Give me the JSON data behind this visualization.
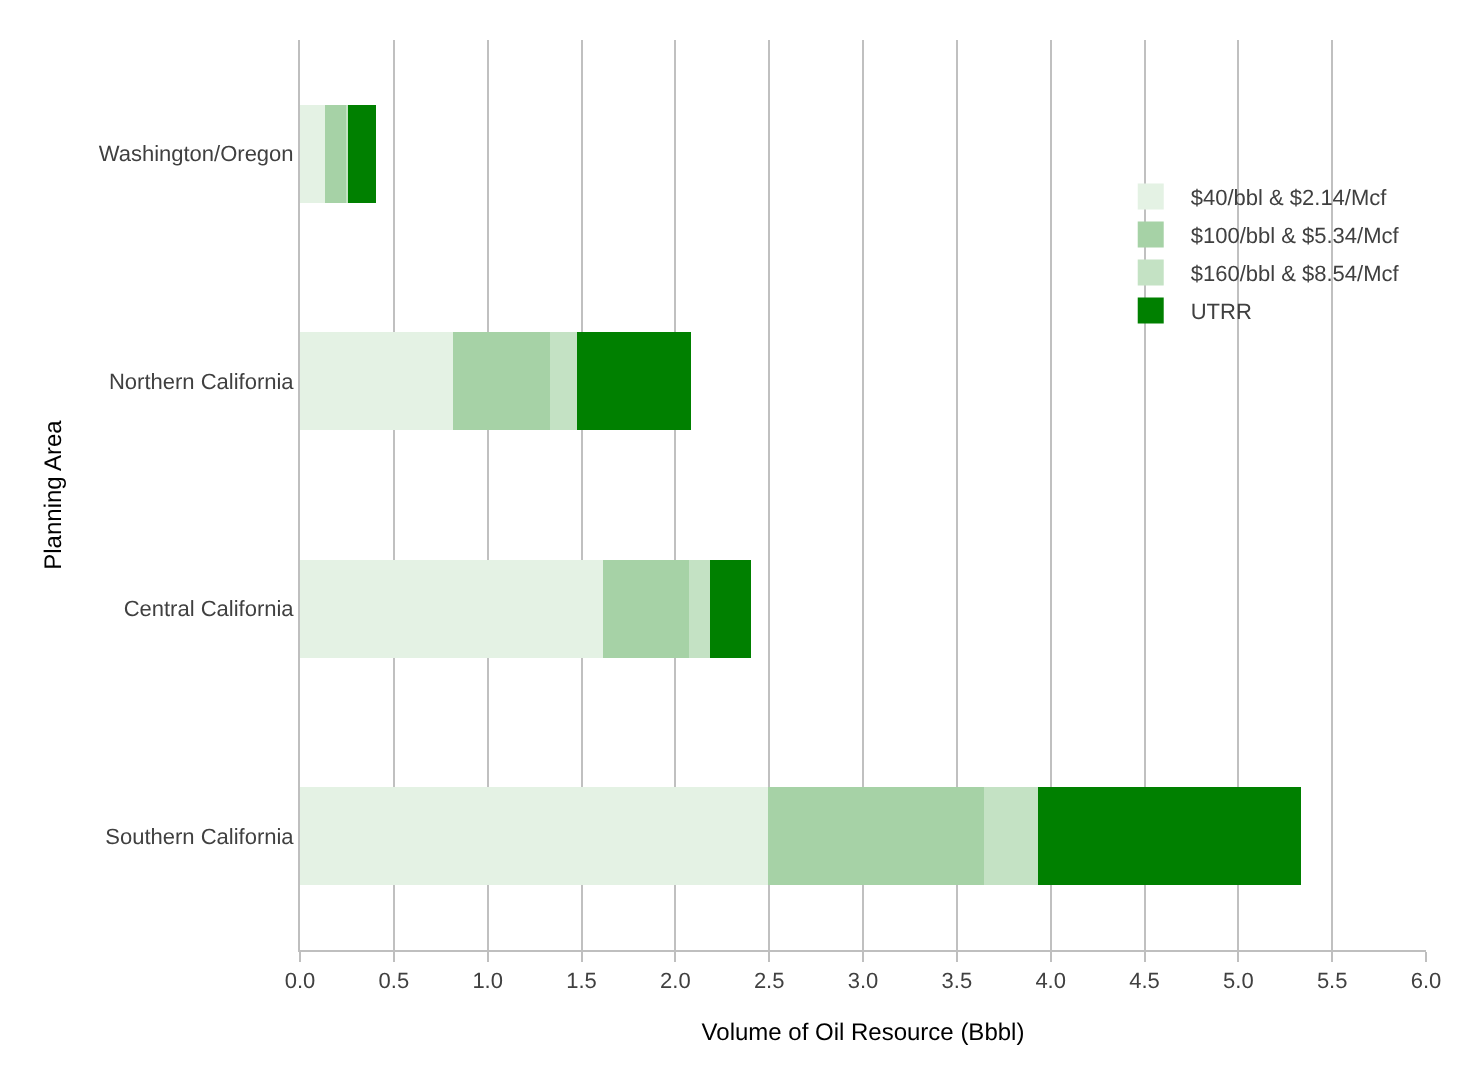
{
  "chart_data": {
    "type": "bar",
    "orientation": "horizontal",
    "stacked": true,
    "xlabel": "Volume of Oil Resource (Bbbl)",
    "ylabel": "Planning Area",
    "categories": [
      "Washington/Oregon",
      "Northern California",
      "Central California",
      "Southern California"
    ],
    "series": [
      {
        "name": "$40/bbl & $2.14/Mcf",
        "color": "#e4f2e4",
        "values": [
          0.14,
          0.82,
          1.62,
          2.5
        ]
      },
      {
        "name": "$100/bbl & $5.34/Mcf",
        "color": "#a6d2a6",
        "values": [
          0.11,
          0.52,
          0.46,
          1.15
        ]
      },
      {
        "name": "$160/bbl & $8.54/Mcf",
        "color": "#c4e2c4",
        "values": [
          0.01,
          0.14,
          0.11,
          0.29
        ]
      },
      {
        "name": "UTRR",
        "color": "#008000",
        "values": [
          0.14,
          0.6,
          0.21,
          1.39
        ]
      }
    ],
    "xlim": [
      0,
      6
    ],
    "xticks": [
      {
        "value": 0,
        "label": "0.0"
      },
      0.5,
      {
        "value": 1,
        "label": "1.0"
      },
      1.5,
      {
        "value": 2,
        "label": "2.0"
      },
      2.5,
      {
        "value": 3,
        "label": "3.0"
      },
      3.5,
      {
        "value": 4,
        "label": "4.0"
      },
      4.5,
      {
        "value": 5,
        "label": "5.0"
      },
      5.5,
      {
        "value": 6,
        "label": "6.0"
      }
    ],
    "grid": "x",
    "legend": "top right"
  }
}
